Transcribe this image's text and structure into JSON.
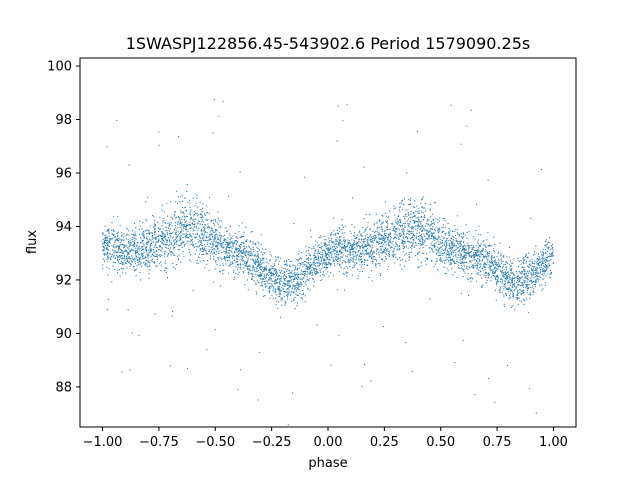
{
  "chart_data": {
    "type": "scatter",
    "title": "1SWASPJ122856.45-543902.6 Period 1579090.25s",
    "xlabel": "phase",
    "ylabel": "flux",
    "xlim": [
      -1.1,
      1.1
    ],
    "ylim": [
      86.5,
      100.3
    ],
    "xticks": [
      -1.0,
      -0.75,
      -0.5,
      -0.25,
      0.0,
      0.25,
      0.5,
      0.75,
      1.0
    ],
    "xtick_labels": [
      "−1.00",
      "−0.75",
      "−0.50",
      "−0.25",
      "0.00",
      "0.25",
      "0.50",
      "0.75",
      "1.00"
    ],
    "yticks": [
      88,
      90,
      92,
      94,
      96,
      98,
      100
    ],
    "ytick_labels": [
      "88",
      "90",
      "92",
      "94",
      "96",
      "98",
      "100"
    ],
    "grid": false,
    "legend": "none",
    "marker_color": "#1f77b4",
    "series": [
      {
        "x": [
          -1.0,
          -0.95,
          -0.9,
          -0.85,
          -0.8,
          -0.75,
          -0.7,
          -0.65,
          -0.6,
          -0.55,
          -0.5,
          -0.45,
          -0.4,
          -0.35,
          -0.3,
          -0.25,
          -0.2,
          -0.15,
          -0.1,
          -0.05,
          0.0,
          0.05,
          0.1,
          0.15,
          0.2,
          0.25,
          0.3,
          0.35,
          0.4,
          0.45,
          0.5,
          0.55,
          0.6,
          0.65,
          0.7,
          0.75,
          0.8,
          0.85,
          0.9,
          0.95,
          1.0
        ],
        "y": [
          93.2,
          93.3,
          93.0,
          93.1,
          93.2,
          93.4,
          93.6,
          93.9,
          94.0,
          93.7,
          93.4,
          93.2,
          93.1,
          92.8,
          92.5,
          92.1,
          91.9,
          92.0,
          92.3,
          92.7,
          93.0,
          93.2,
          93.1,
          93.2,
          93.3,
          93.5,
          93.7,
          93.9,
          94.0,
          93.7,
          93.3,
          93.2,
          93.0,
          92.9,
          92.8,
          92.4,
          92.0,
          91.9,
          92.2,
          92.6,
          93.0
        ],
        "spread": [
          0.7,
          0.8,
          0.8,
          0.8,
          0.9,
          0.9,
          1.0,
          1.1,
          1.1,
          1.0,
          0.9,
          0.8,
          0.8,
          0.8,
          0.8,
          0.8,
          0.8,
          0.8,
          0.8,
          0.7,
          0.7,
          0.8,
          0.8,
          0.8,
          0.9,
          0.9,
          1.0,
          1.1,
          1.1,
          1.0,
          0.9,
          0.8,
          0.8,
          0.8,
          0.8,
          0.8,
          0.8,
          0.8,
          0.8,
          0.7,
          0.7
        ],
        "n_per_bin": 120
      }
    ]
  }
}
